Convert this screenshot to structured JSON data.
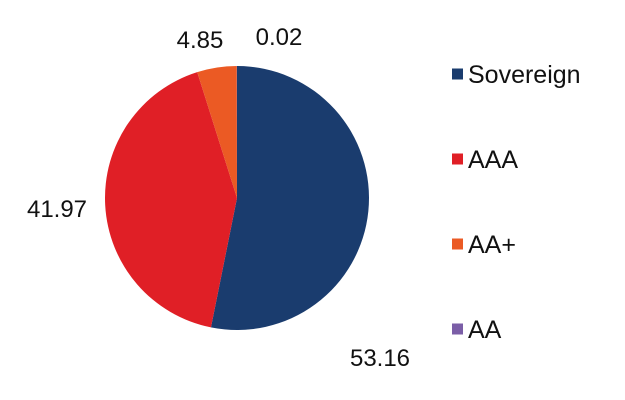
{
  "chart_data": {
    "type": "pie",
    "categories": [
      "Sovereign",
      "AAA",
      "AA+",
      "AA"
    ],
    "values": [
      53.16,
      41.97,
      4.85,
      0.02
    ],
    "data_labels": [
      "53.16",
      "41.97",
      "4.85",
      "0.02"
    ],
    "colors": [
      "#1a3c6e",
      "#e01f26",
      "#eb5a24",
      "#7b5ea7"
    ],
    "legend": {
      "entries": [
        "Sovereign",
        "AAA",
        "AA+",
        "AA"
      ],
      "placement": "right"
    },
    "title": ""
  }
}
